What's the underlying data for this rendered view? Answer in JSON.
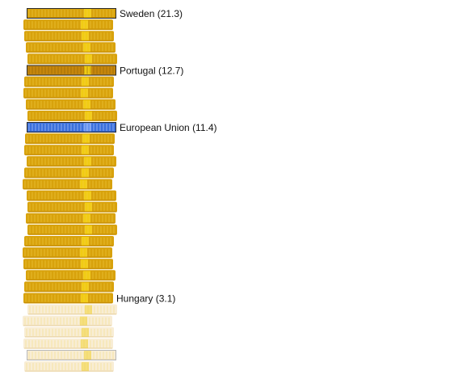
{
  "chart_data": {
    "type": "bar",
    "style": "stacked-coin-pictogram",
    "orientation": "vertical-stack",
    "items": [
      {
        "label": "Sweden (21.3)",
        "value": 21.3,
        "highlight": "outlined",
        "color": "#d8a20c"
      },
      {
        "label": "",
        "value": null,
        "highlight": "none",
        "color": "#d8a20c"
      },
      {
        "label": "",
        "value": null,
        "highlight": "none",
        "color": "#d8a20c"
      },
      {
        "label": "",
        "value": null,
        "highlight": "none",
        "color": "#d8a20c"
      },
      {
        "label": "",
        "value": null,
        "highlight": "none",
        "color": "#d8a20c"
      },
      {
        "label": "Portugal (12.7)",
        "value": 12.7,
        "highlight": "outlined-dark",
        "color": "#c6860c"
      },
      {
        "label": "",
        "value": null,
        "highlight": "none",
        "color": "#d8a20c"
      },
      {
        "label": "",
        "value": null,
        "highlight": "none",
        "color": "#d8a20c"
      },
      {
        "label": "",
        "value": null,
        "highlight": "none",
        "color": "#d8a20c"
      },
      {
        "label": "",
        "value": null,
        "highlight": "none",
        "color": "#d8a20c"
      },
      {
        "label": "European Union (11.4)",
        "value": 11.4,
        "highlight": "blue",
        "color": "#3a6fdc"
      },
      {
        "label": "",
        "value": null,
        "highlight": "none",
        "color": "#d8a20c"
      },
      {
        "label": "",
        "value": null,
        "highlight": "none",
        "color": "#d8a20c"
      },
      {
        "label": "",
        "value": null,
        "highlight": "none",
        "color": "#d8a20c"
      },
      {
        "label": "",
        "value": null,
        "highlight": "none",
        "color": "#d8a20c"
      },
      {
        "label": "",
        "value": null,
        "highlight": "none",
        "color": "#d8a20c"
      },
      {
        "label": "",
        "value": null,
        "highlight": "none",
        "color": "#d8a20c"
      },
      {
        "label": "",
        "value": null,
        "highlight": "none",
        "color": "#d8a20c"
      },
      {
        "label": "",
        "value": null,
        "highlight": "none",
        "color": "#d8a20c"
      },
      {
        "label": "",
        "value": null,
        "highlight": "none",
        "color": "#d8a20c"
      },
      {
        "label": "",
        "value": null,
        "highlight": "none",
        "color": "#d8a20c"
      },
      {
        "label": "",
        "value": null,
        "highlight": "none",
        "color": "#d8a20c"
      },
      {
        "label": "",
        "value": null,
        "highlight": "none",
        "color": "#d8a20c"
      },
      {
        "label": "",
        "value": null,
        "highlight": "none",
        "color": "#d8a20c"
      },
      {
        "label": "",
        "value": null,
        "highlight": "none",
        "color": "#d8a20c"
      },
      {
        "label": "Hungary (3.1)",
        "value": 3.1,
        "highlight": "none",
        "color": "#d8a20c"
      },
      {
        "label": "",
        "value": null,
        "highlight": "faded",
        "color": "#f5e7c7"
      },
      {
        "label": "",
        "value": null,
        "highlight": "faded",
        "color": "#f5e7c7"
      },
      {
        "label": "",
        "value": null,
        "highlight": "faded",
        "color": "#f5e7c7"
      },
      {
        "label": "",
        "value": null,
        "highlight": "faded",
        "color": "#f5e7c7"
      },
      {
        "label": "",
        "value": null,
        "highlight": "faded-outlined",
        "color": "#f5e7c7"
      },
      {
        "label": "",
        "value": null,
        "highlight": "faded",
        "color": "#f5e7c7"
      }
    ],
    "colors": {
      "coin": "#d8a20c",
      "coin_highlight": "#f2cf14",
      "coin_dark": "#c6860c",
      "blue": "#3a6fdc",
      "faded": "#f5e7c7",
      "outline": "#2b2b2b"
    }
  }
}
